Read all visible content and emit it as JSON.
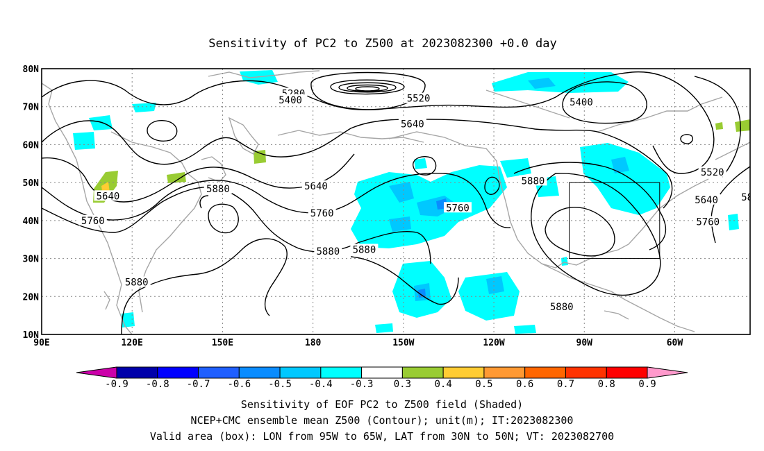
{
  "title": "Sensitivity of PC2 to Z500 at 2023082300 +0.0 day",
  "map": {
    "lat_labels": [
      "80N",
      "70N",
      "60N",
      "50N",
      "40N",
      "30N",
      "20N",
      "10N"
    ],
    "lon_labels": [
      "90E",
      "120E",
      "150E",
      "180",
      "150W",
      "120W",
      "90W",
      "60W"
    ],
    "lat_range": [
      10,
      80
    ],
    "lon_range": [
      90,
      325
    ],
    "grid": "dotted",
    "contour_color": "#000000",
    "coastline_color": "#a6a6a6",
    "contour_labels": [
      {
        "text": "5280",
        "lon": 173.5,
        "lat": 73.5
      },
      {
        "text": "5400",
        "lon": 172.5,
        "lat": 71.8
      },
      {
        "text": "5520",
        "lon": 215,
        "lat": 72.2
      },
      {
        "text": "5400",
        "lon": 269,
        "lat": 71.2
      },
      {
        "text": "5640",
        "lon": 213,
        "lat": 65.5
      },
      {
        "text": "5520",
        "lon": 312.5,
        "lat": 52.8
      },
      {
        "text": "5640",
        "lon": 112,
        "lat": 46.5
      },
      {
        "text": "5880",
        "lon": 148.5,
        "lat": 48.4
      },
      {
        "text": "5640",
        "lon": 181,
        "lat": 49.1
      },
      {
        "text": "5880",
        "lon": 253,
        "lat": 50.5
      },
      {
        "text": "5640",
        "lon": 310.5,
        "lat": 45.5
      },
      {
        "text": "58",
        "lon": 324,
        "lat": 46.2
      },
      {
        "text": "5760",
        "lon": 107,
        "lat": 40.0
      },
      {
        "text": "5760",
        "lon": 183,
        "lat": 42.0
      },
      {
        "text": "5760",
        "lon": 228,
        "lat": 43.4
      },
      {
        "text": "5760",
        "lon": 311,
        "lat": 39.7
      },
      {
        "text": "5880",
        "lon": 185,
        "lat": 31.9
      },
      {
        "text": "5880",
        "lon": 197,
        "lat": 32.4
      },
      {
        "text": "5880",
        "lon": 121.5,
        "lat": 23.8
      },
      {
        "text": "5880",
        "lon": 262.5,
        "lat": 17.3
      }
    ],
    "valid_box": {
      "lon_min": 265,
      "lon_max": 295,
      "lat_min": 30,
      "lat_max": 50
    }
  },
  "colorbar": {
    "labels": [
      "-0.9",
      "-0.8",
      "-0.7",
      "-0.6",
      "-0.5",
      "-0.4",
      "-0.3",
      "0.3",
      "0.4",
      "0.5",
      "0.6",
      "0.7",
      "0.8",
      "0.9"
    ],
    "colors": [
      "#cc00aa",
      "#0000aa",
      "#0000ff",
      "#1f5fff",
      "#0a8cff",
      "#00c8ff",
      "#00ffff",
      "#ffffff",
      "#99cc33",
      "#ffcc33",
      "#ff9933",
      "#ff6600",
      "#ff3300",
      "#ff0000",
      "#ff99cc"
    ]
  },
  "captions": [
    "Sensitivity of EOF PC2 to Z500 field (Shaded)",
    "NCEP+CMC ensemble mean Z500 (Contour); unit(m); IT:2023082300",
    "Valid area (box): LON from 95W to 65W, LAT from 30N to 50N; VT: 2023082700"
  ]
}
